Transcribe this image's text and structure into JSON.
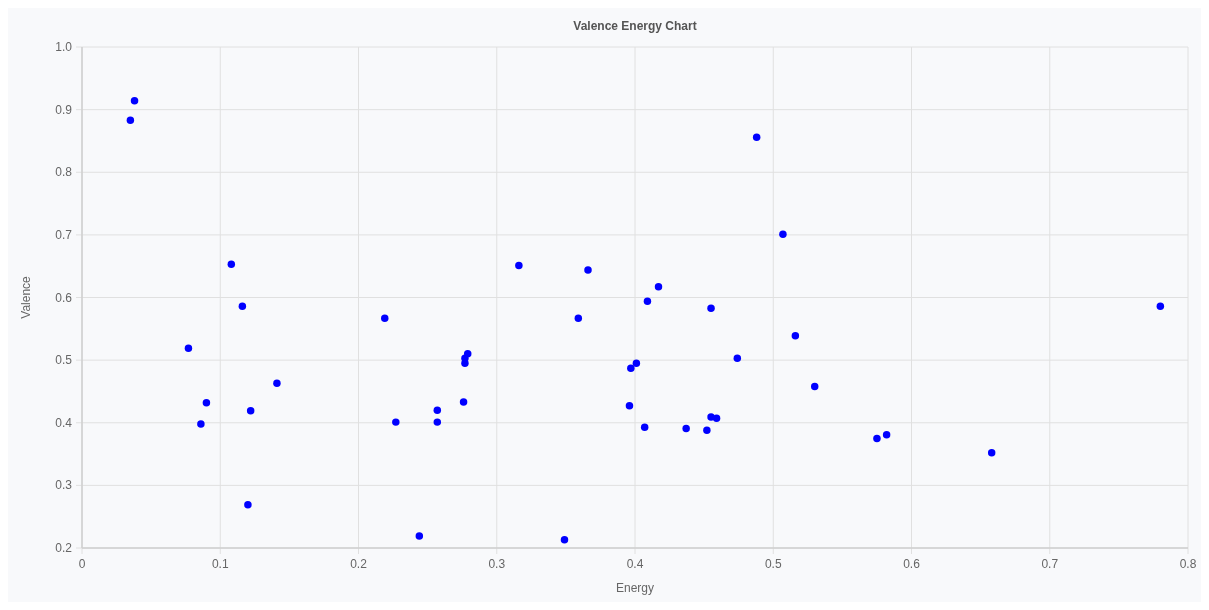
{
  "chart_data": {
    "type": "scatter",
    "title": "Valence Energy Chart",
    "xlabel": "Energy",
    "ylabel": "Valence",
    "x": [
      0.035,
      0.038,
      0.077,
      0.086,
      0.09,
      0.108,
      0.116,
      0.12,
      0.122,
      0.141,
      0.219,
      0.227,
      0.244,
      0.257,
      0.257,
      0.276,
      0.277,
      0.277,
      0.279,
      0.316,
      0.349,
      0.359,
      0.366,
      0.396,
      0.397,
      0.401,
      0.407,
      0.409,
      0.417,
      0.437,
      0.452,
      0.455,
      0.455,
      0.459,
      0.474,
      0.488,
      0.507,
      0.516,
      0.53,
      0.575,
      0.582,
      0.658,
      0.78
    ],
    "series": [
      {
        "color": "#0000ff",
        "values": [
          0.883,
          0.914,
          0.519,
          0.398,
          0.432,
          0.653,
          0.586,
          0.269,
          0.419,
          0.463,
          0.567,
          0.401,
          0.219,
          0.42,
          0.401,
          0.433,
          0.495,
          0.503,
          0.51,
          0.651,
          0.213,
          0.567,
          0.644,
          0.427,
          0.487,
          0.495,
          0.393,
          0.594,
          0.617,
          0.391,
          0.388,
          0.409,
          0.583,
          0.407,
          0.503,
          0.856,
          0.701,
          0.539,
          0.458,
          0.375,
          0.381,
          0.352,
          0.586
        ]
      }
    ],
    "xlim": [
      0,
      0.8
    ],
    "xticks": [
      0,
      0.1,
      0.2,
      0.3,
      0.4,
      0.5,
      0.6,
      0.7,
      0.8
    ],
    "ylim": [
      0.2,
      1.0
    ],
    "yticks": [
      0.2,
      0.3,
      0.4,
      0.5,
      0.6,
      0.7,
      0.8,
      0.9,
      {
        "value": 1.0,
        "label": "1.0"
      }
    ],
    "grid": true,
    "marker": "circle"
  }
}
